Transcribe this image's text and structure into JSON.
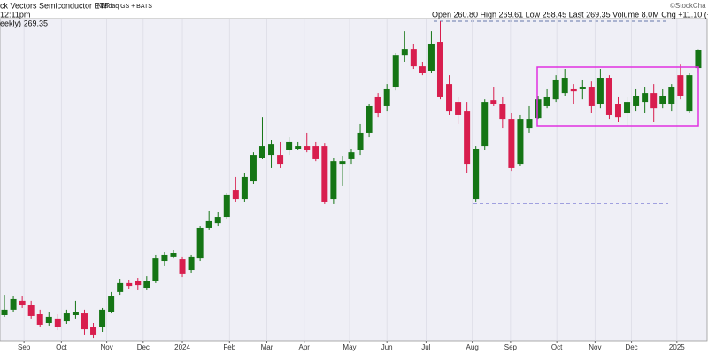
{
  "chart_data": {
    "type": "candlestick",
    "title": "ck Vectors Semiconductor ETF",
    "exchange": "Nasdaq GS + BATS",
    "time": "12:11pm",
    "quote": "Open 260.80  High 269.61  Low 258.45  Last 269.35  Volume 8.0M  Chg +11.10 (+4",
    "credit": "©StockCha",
    "series_label": "eekly) 269.35",
    "up_color": "#157515",
    "down_color": "#d81e4e",
    "xlim": [
      -0.5,
      79.1
    ],
    "ylim": [
      134.5,
      284.2
    ],
    "grid": true,
    "xticks": [
      {
        "value": 2.2,
        "label": "Sep"
      },
      {
        "value": 6.4,
        "label": "Oct"
      },
      {
        "value": 11.5,
        "label": "Nov"
      },
      {
        "value": 15.6,
        "label": "Dec"
      },
      {
        "value": 20.0,
        "label": "2024"
      },
      {
        "value": 25.3,
        "label": "Feb"
      },
      {
        "value": 29.5,
        "label": "Mar"
      },
      {
        "value": 33.7,
        "label": "Apr"
      },
      {
        "value": 38.8,
        "label": "May"
      },
      {
        "value": 43.0,
        "label": "Jun"
      },
      {
        "value": 47.4,
        "label": "Jul"
      },
      {
        "value": 52.6,
        "label": "Aug"
      },
      {
        "value": 56.9,
        "label": "Sep"
      },
      {
        "value": 62.1,
        "label": "Oct"
      },
      {
        "value": 66.4,
        "label": "Nov"
      },
      {
        "value": 70.5,
        "label": "Dec"
      },
      {
        "value": 75.6,
        "label": "2025"
      }
    ],
    "open": [
      146.4,
      148.9,
      153.0,
      150.9,
      146.8,
      142.7,
      144.8,
      143.5,
      146.4,
      147.2,
      140.7,
      140.7,
      148.0,
      157.1,
      161.2,
      162.0,
      159.1,
      162.0,
      171.4,
      173.5,
      172.2,
      167.3,
      172.6,
      186.6,
      189.0,
      191.9,
      204.2,
      200.1,
      208.3,
      219.4,
      220.6,
      220.6,
      222.7,
      223.5,
      224.7,
      224.7,
      224.7,
      200.1,
      216.5,
      218.6,
      222.7,
      230.9,
      247.3,
      243.2,
      252.2,
      266.9,
      269.8,
      261.6,
      259.6,
      272.7,
      253.4,
      245.2,
      241.1,
      200.1,
      224.7,
      246.0,
      244.0,
      237.0,
      216.5,
      232.9,
      237.8,
      243.2,
      246.4,
      249.3,
      251.4,
      251.4,
      252.2,
      244.0,
      256.3,
      244.0,
      239.9,
      243.2,
      245.2,
      249.3,
      244.0,
      244.0,
      257.5,
      241.1,
      260.8
    ],
    "high": [
      155.8,
      155.0,
      155.0,
      153.0,
      148.9,
      148.0,
      146.8,
      148.9,
      153.0,
      148.9,
      142.7,
      149.7,
      157.1,
      163.2,
      162.8,
      163.6,
      164.4,
      174.3,
      175.5,
      176.7,
      173.5,
      174.3,
      187.8,
      194.8,
      194.0,
      203.0,
      210.4,
      212.4,
      221.8,
      238.2,
      227.6,
      226.8,
      228.8,
      226.8,
      230.9,
      226.8,
      225.9,
      219.4,
      220.2,
      223.5,
      235.0,
      244.0,
      249.3,
      253.4,
      267.8,
      278.0,
      271.9,
      263.7,
      278.0,
      282.5,
      257.5,
      247.3,
      245.2,
      224.7,
      246.4,
      252.2,
      247.3,
      239.9,
      239.1,
      243.2,
      248.1,
      251.4,
      257.5,
      260.4,
      253.4,
      255.5,
      254.6,
      260.4,
      257.5,
      247.3,
      247.3,
      251.4,
      252.2,
      253.4,
      251.4,
      253.4,
      262.8,
      258.7,
      269.61
    ],
    "low": [
      145.6,
      148.0,
      149.7,
      144.8,
      140.7,
      141.5,
      139.4,
      142.3,
      144.8,
      137.4,
      135.7,
      138.6,
      147.2,
      155.8,
      158.7,
      157.9,
      157.9,
      161.2,
      169.4,
      172.6,
      164.0,
      166.1,
      171.4,
      185.8,
      187.8,
      190.7,
      198.9,
      198.9,
      207.1,
      218.6,
      214.5,
      214.5,
      220.6,
      222.7,
      221.8,
      217.7,
      198.1,
      198.1,
      206.3,
      216.5,
      220.6,
      228.8,
      238.2,
      241.1,
      250.5,
      263.7,
      260.4,
      257.5,
      258.7,
      246.4,
      239.1,
      235.0,
      212.4,
      198.9,
      222.7,
      243.2,
      232.9,
      213.2,
      215.3,
      230.9,
      237.0,
      242.3,
      245.2,
      248.1,
      244.0,
      246.4,
      239.9,
      242.3,
      237.0,
      235.8,
      234.1,
      241.1,
      239.9,
      235.8,
      242.3,
      241.1,
      246.4,
      239.9,
      258.45
    ],
    "close": [
      148.9,
      153.8,
      150.9,
      146.0,
      141.9,
      145.6,
      140.7,
      147.2,
      148.0,
      139.8,
      137.4,
      148.9,
      155.0,
      161.2,
      159.9,
      160.3,
      162.0,
      172.6,
      174.3,
      175.1,
      165.3,
      173.5,
      186.6,
      189.9,
      191.9,
      202.2,
      200.1,
      210.4,
      220.6,
      224.7,
      225.5,
      216.5,
      226.8,
      224.7,
      222.7,
      218.6,
      198.9,
      217.7,
      217.7,
      221.8,
      230.9,
      243.2,
      239.9,
      251.4,
      266.9,
      269.8,
      261.6,
      258.7,
      271.9,
      247.3,
      241.1,
      239.1,
      216.5,
      223.5,
      245.2,
      244.0,
      237.0,
      214.5,
      237.0,
      237.0,
      246.4,
      247.3,
      255.5,
      256.3,
      250.1,
      252.2,
      243.2,
      256.3,
      239.1,
      238.2,
      245.2,
      248.1,
      249.3,
      242.3,
      248.1,
      252.2,
      248.1,
      257.5,
      269.35
    ]
  }
}
